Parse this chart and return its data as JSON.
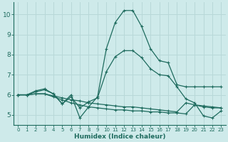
{
  "xlabel": "Humidex (Indice chaleur)",
  "ylabel": "",
  "xlim": [
    -0.5,
    23.5
  ],
  "ylim": [
    4.5,
    10.6
  ],
  "yticks": [
    5,
    6,
    7,
    8,
    9,
    10
  ],
  "xticks": [
    0,
    1,
    2,
    3,
    4,
    5,
    6,
    7,
    8,
    9,
    10,
    11,
    12,
    13,
    14,
    15,
    16,
    17,
    18,
    19,
    20,
    21,
    22,
    23
  ],
  "background_color": "#ceeaea",
  "grid_color": "#b8d8d8",
  "line_color": "#1e6b5e",
  "lines": [
    {
      "x": [
        0,
        1,
        2,
        3,
        4,
        5,
        6,
        7,
        8,
        9,
        10,
        11,
        12,
        13,
        14,
        15,
        16,
        17,
        18,
        19,
        20,
        21,
        22,
        23
      ],
      "y": [
        6.0,
        6.0,
        6.2,
        6.3,
        6.05,
        5.55,
        6.0,
        4.85,
        5.4,
        5.9,
        8.3,
        9.6,
        10.2,
        10.2,
        9.4,
        8.3,
        7.7,
        7.6,
        6.5,
        6.4,
        6.4,
        6.4,
        6.4,
        6.4
      ]
    },
    {
      "x": [
        0,
        1,
        2,
        3,
        4,
        5,
        6,
        7,
        8,
        9,
        10,
        11,
        12,
        13,
        14,
        15,
        16,
        17,
        18,
        19,
        20,
        21,
        22,
        23
      ],
      "y": [
        6.0,
        6.0,
        6.15,
        6.25,
        6.05,
        5.55,
        5.9,
        5.35,
        5.65,
        5.85,
        7.15,
        7.9,
        8.2,
        8.2,
        7.85,
        7.3,
        7.0,
        6.95,
        6.4,
        5.8,
        5.6,
        4.95,
        4.85,
        5.2
      ]
    },
    {
      "x": [
        0,
        1,
        2,
        3,
        4,
        5,
        6,
        7,
        8,
        9,
        10,
        11,
        12,
        13,
        14,
        15,
        16,
        17,
        18,
        19,
        20,
        21,
        22,
        23
      ],
      "y": [
        6.0,
        6.0,
        6.05,
        6.05,
        5.95,
        5.85,
        5.75,
        5.7,
        5.6,
        5.55,
        5.5,
        5.45,
        5.4,
        5.4,
        5.35,
        5.3,
        5.25,
        5.2,
        5.15,
        5.6,
        5.5,
        5.4,
        5.35,
        5.35
      ]
    },
    {
      "x": [
        0,
        1,
        2,
        3,
        4,
        5,
        6,
        7,
        8,
        9,
        10,
        11,
        12,
        13,
        14,
        15,
        16,
        17,
        18,
        19,
        20,
        21,
        22,
        23
      ],
      "y": [
        6.0,
        6.0,
        6.05,
        6.05,
        5.9,
        5.75,
        5.6,
        5.5,
        5.4,
        5.35,
        5.3,
        5.25,
        5.25,
        5.2,
        5.2,
        5.15,
        5.15,
        5.1,
        5.1,
        5.05,
        5.5,
        5.45,
        5.4,
        5.35
      ]
    }
  ]
}
